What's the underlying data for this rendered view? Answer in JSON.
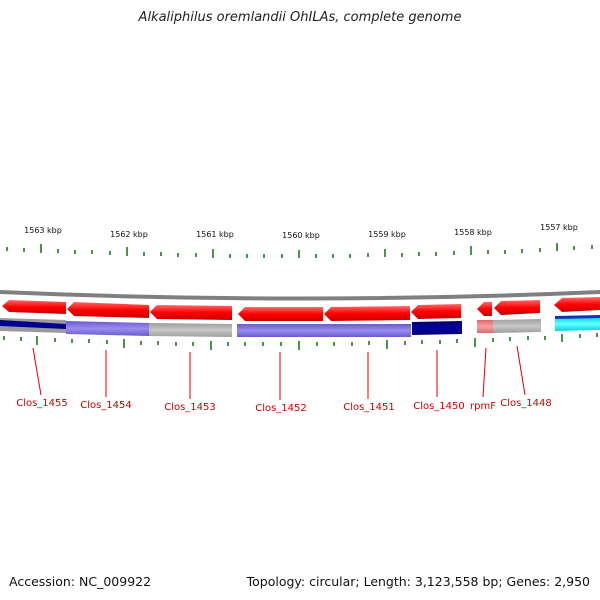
{
  "title": "Alkaliphilus oremlandii OhILAs, complete genome",
  "accession": "Accession: NC_009922",
  "topology": "Topology: circular; Length: 3,123,558 bp; Genes: 2,950",
  "kbp_labels": [
    "1563 kbp",
    "1562 kbp",
    "1561 kbp",
    "1560 kbp",
    "1559 kbp",
    "1558 kbp",
    "1557 kbp"
  ],
  "genes": [
    "Clos_1455",
    "Clos_1454",
    "Clos_1453",
    "Clos_1452",
    "Clos_1451",
    "Clos_1450",
    "rpmF",
    "Clos_1448"
  ],
  "colors": {
    "arrow": "#ff0000",
    "tick": "#1a7a1a",
    "label": "#cc0000",
    "backbone": "#888888",
    "navy": "#000080",
    "slate": "#7b68ee",
    "grey": "#b0b0b0",
    "pink": "#f08080",
    "cyan": "#00ffff"
  }
}
